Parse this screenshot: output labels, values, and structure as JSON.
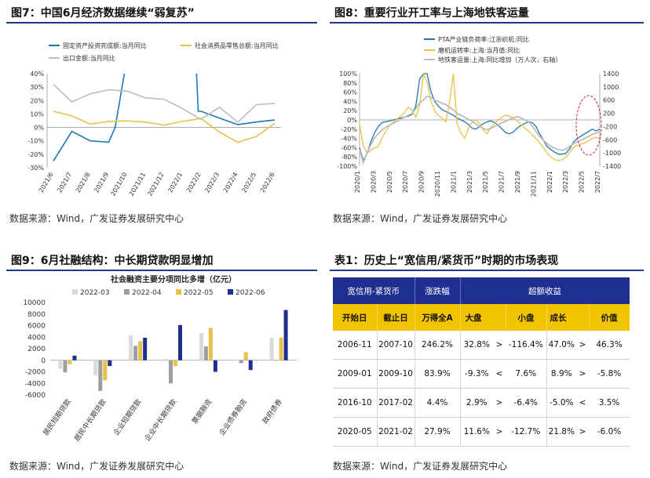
{
  "colors": {
    "blue": "#1f77b4",
    "navy": "#1f2f8f",
    "gold": "#e8c14a",
    "gray": "#bdbdbd",
    "lightgray": "#d9d9d9",
    "darkgray": "#9e9e9e",
    "red": "#d8171c"
  },
  "panels": {
    "p7": {
      "title": "图7：中国6月经济数据继续“弱复苏”",
      "source": "数据来源：Wind，广发证券发展研究中心"
    },
    "p8": {
      "title": "图8：重要行业开工率与上海地铁客运量",
      "source": "数据来源：Wind，广发证券发展研究中心"
    },
    "p9": {
      "title": "图9：6月社融结构：中长期贷款明显增加",
      "source": "数据来源：Wind，广发证券发展研究中心"
    },
    "t1": {
      "title": "表1：历史上“宽信用/紧货币”时期的市场表现",
      "source": "数据来源：Wind，广发证券发展研究中心"
    }
  },
  "chart_data": [
    {
      "id": "fig7",
      "type": "line",
      "title": "中国6月经济数据继续“弱复苏”",
      "categories": [
        "2021/6",
        "2021/7",
        "2021/8",
        "2021/9",
        "2021/10",
        "2021/11",
        "2021/12",
        "2022/1",
        "2022/2",
        "2022/3",
        "2022/4",
        "2022/5",
        "2022/6"
      ],
      "ylim": [
        -30,
        40
      ],
      "yticks": [
        "-30%",
        "-20%",
        "-10%",
        "0%",
        "10%",
        "20%",
        "30%",
        "40%"
      ],
      "series": [
        {
          "name": "固定资产投资完成额:当月同比",
          "color": "#1f77b4",
          "values": [
            -25,
            -3,
            -10,
            -11,
            44,
            null,
            null,
            null,
            12,
            7,
            2,
            4,
            5.5
          ]
        },
        {
          "name": "社会消费品零售总额:当月同比",
          "color": "#e8c14a",
          "values": [
            12,
            8.5,
            2.5,
            4.4,
            4.9,
            3.9,
            1.7,
            4.5,
            6.7,
            -3.5,
            -11.1,
            -6.7,
            3.1
          ]
        },
        {
          "name": "出口金额:当月同比",
          "color": "#bdbdbd",
          "values": [
            32,
            19,
            25,
            28,
            27,
            22,
            21,
            14,
            6,
            15,
            3.9,
            16.9,
            17.9
          ]
        }
      ]
    },
    {
      "id": "fig8",
      "type": "line",
      "title": "重要行业开工率与上海地铁客运量",
      "xticks": [
        "2020/1",
        "2020/3",
        "2020/5",
        "2020/7",
        "2020/9",
        "2020/11",
        "2021/1",
        "2021/3",
        "2021/5",
        "2021/7",
        "2021/9",
        "2021/11",
        "2022/1",
        "2022/3",
        "2022/5",
        "2022/7"
      ],
      "ylim_left": [
        -100,
        100
      ],
      "yticks_left": [
        "-100%",
        "-80%",
        "-60%",
        "-40%",
        "-20%",
        "0%",
        "20%",
        "40%",
        "60%",
        "80%",
        "100%"
      ],
      "ylim_right": [
        -1400,
        1400
      ],
      "yticks_right": [
        "-1400",
        "-1000",
        "-600",
        "-200",
        "200",
        "600",
        "1000",
        "1400"
      ],
      "series": [
        {
          "name": "PTA产业链负荷率:江浙织机:同比",
          "color": "#1f77b4",
          "axis": "left",
          "values": [
            -60,
            -88,
            -72,
            -48,
            -28,
            -14,
            -6,
            -4,
            -2,
            0,
            2,
            4,
            6,
            8,
            12,
            30,
            88,
            100,
            100,
            62,
            40,
            30,
            22,
            18,
            14,
            10,
            4,
            0,
            -4,
            -10,
            -18,
            -20,
            -14,
            -8,
            -4,
            -2,
            -6,
            -12,
            -20,
            -28,
            -30,
            -26,
            -18,
            -12,
            -8,
            -4,
            -6,
            -14,
            -30,
            -44,
            -58,
            -64,
            -70,
            -74,
            -74,
            -72,
            -62,
            -48,
            -40,
            -35,
            -30,
            -25,
            -20,
            -24,
            -20
          ]
        },
        {
          "name": "磨机运转率:上海:当月值:同比",
          "color": "#e8c14a",
          "axis": "left",
          "values": [
            -10,
            -56,
            -72,
            -66,
            -60,
            -58,
            -40,
            -24,
            -12,
            -4,
            2,
            8,
            16,
            28,
            20,
            6,
            30,
            100,
            82,
            42,
            20,
            10,
            4,
            -4,
            40,
            100,
            -8,
            -28,
            -40,
            -18,
            -6,
            0,
            -8,
            -22,
            -30,
            -16,
            -8,
            0,
            6,
            10,
            8,
            4,
            -2,
            -10,
            -18,
            -24,
            -32,
            -40,
            -50,
            -60,
            -72,
            -80,
            -86,
            -88,
            -86,
            -80,
            -70,
            -60,
            -55,
            -52,
            -50,
            -45,
            -40,
            -38,
            -40
          ]
        },
        {
          "name": "地铁客运量:上海:同比增加（万人次，右轴）",
          "color": "#bdbdbd",
          "axis": "right",
          "values": [
            -900,
            -1300,
            -1000,
            -760,
            -540,
            -420,
            -300,
            -220,
            -160,
            -100,
            -40,
            20,
            80,
            140,
            200,
            340,
            520,
            600,
            720,
            680,
            600,
            560,
            500,
            460,
            380,
            300,
            200,
            140,
            80,
            20,
            -40,
            -120,
            -200,
            -260,
            -300,
            -260,
            -200,
            -140,
            -80,
            -40,
            20,
            60,
            100,
            60,
            0,
            -60,
            -180,
            -340,
            -500,
            -620,
            -720,
            -800,
            -860,
            -900,
            -920,
            -880,
            -800,
            -720,
            -660,
            -620,
            -560,
            -500,
            -440,
            -400,
            -360
          ]
        }
      ]
    },
    {
      "id": "fig9",
      "type": "bar",
      "title": "社会融资主要分项同比多增（亿元）",
      "categories": [
        "居民短期贷款",
        "居民中长期贷款",
        "企业短期贷款",
        "企业中长期贷款",
        "票据融资",
        "企业债券融资",
        "政府债券"
      ],
      "ylim": [
        -6000,
        10000
      ],
      "yticks": [
        "10000",
        "8000",
        "6000",
        "4000",
        "2000",
        "0",
        "-2000",
        "-4000",
        "-6000"
      ],
      "series": [
        {
          "name": "2022-03",
          "color": "#d9d9d9",
          "values": [
            -1500,
            -2600,
            4300,
            200,
            4700,
            0,
            3900
          ]
        },
        {
          "name": "2022-04",
          "color": "#9e9e9e",
          "values": [
            -2100,
            -5300,
            2500,
            -4000,
            2400,
            -500,
            0
          ]
        },
        {
          "name": "2022-05",
          "color": "#e8c14a",
          "values": [
            -700,
            -3500,
            3300,
            -1000,
            5600,
            1400,
            3900
          ]
        },
        {
          "name": "2022-06",
          "color": "#1f2f8f",
          "values": [
            800,
            -1000,
            3900,
            6100,
            -2000,
            -1700,
            8700
          ]
        }
      ]
    }
  ],
  "table": {
    "header": {
      "h1": "宽信用-紧货币",
      "h2": "涨跌幅",
      "h3": "超额收益"
    },
    "subheader": {
      "s1": "开始日",
      "s2": "截止日",
      "s3": "万得全A",
      "s4": "大盘",
      "s5": "小盘",
      "s6": "成长",
      "s7": "价值"
    },
    "rows": [
      {
        "start": "2006-11",
        "end": "2007-10",
        "wind": "246.2%",
        "large": "32.8%",
        "cmp1": ">",
        "small": "-116.4%",
        "growth": "47.0%",
        "cmp2": ">",
        "value": "46.3%"
      },
      {
        "start": "2009-01",
        "end": "2009-10",
        "wind": "83.9%",
        "large": "-9.3%",
        "cmp1": "<",
        "small": "7.6%",
        "growth": "8.9%",
        "cmp2": ">",
        "value": "-5.8%"
      },
      {
        "start": "2016-10",
        "end": "2017-02",
        "wind": "4.4%",
        "large": "2.9%",
        "cmp1": ">",
        "small": "-6.4%",
        "growth": "-5.0%",
        "cmp2": "<",
        "value": "3.5%"
      },
      {
        "start": "2020-05",
        "end": "2021-02",
        "wind": "27.9%",
        "large": "11.6%",
        "cmp1": ">",
        "small": "-12.7%",
        "growth": "21.8%",
        "cmp2": ">",
        "value": "-6.0%"
      }
    ]
  }
}
